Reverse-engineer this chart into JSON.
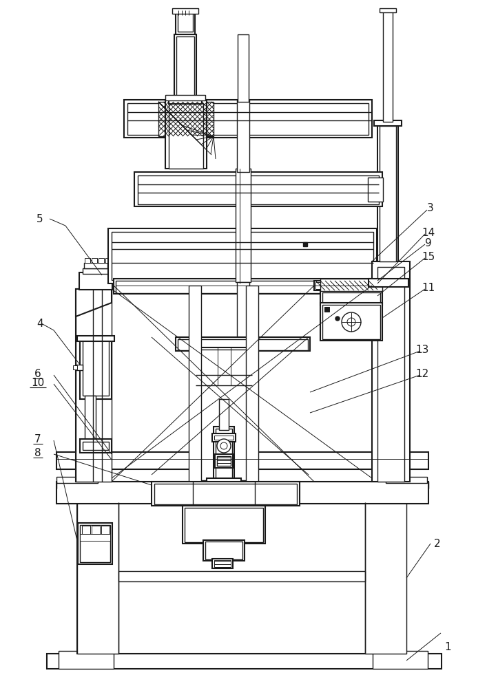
{
  "bg_color": "#ffffff",
  "line_color": "#1a1a1a",
  "fig_width": 7.07,
  "fig_height": 9.97
}
